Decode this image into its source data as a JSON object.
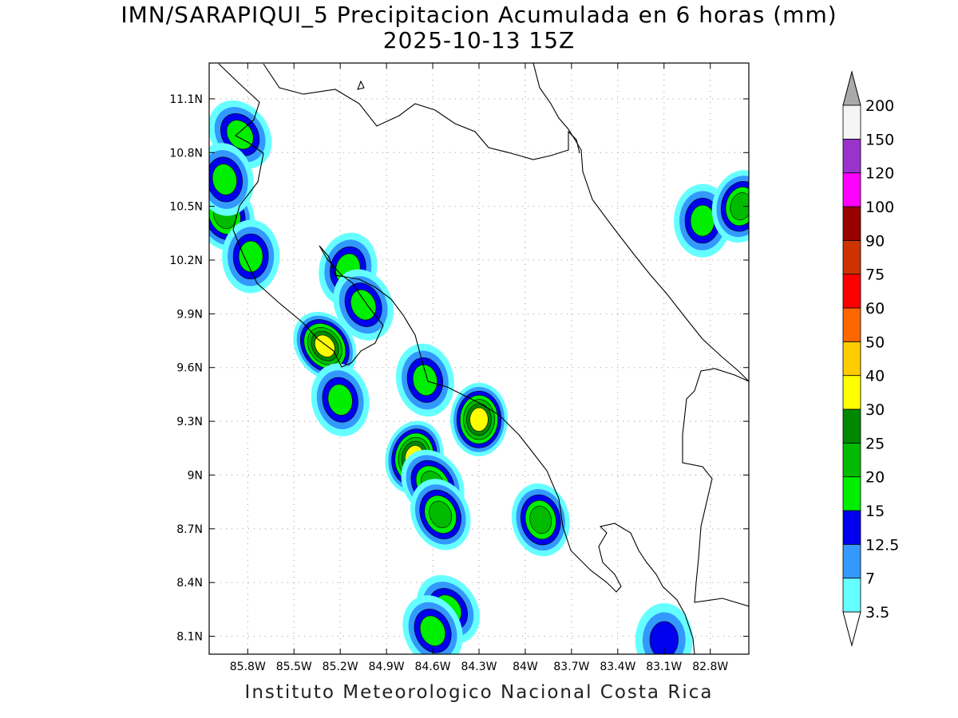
{
  "title": {
    "line1": "IMN/SARAPIQUI_5 Precipitacion Acumulada en 6 horas (mm)",
    "line2": "2025-10-13 15Z"
  },
  "credit": "Instituto Meteorologico Nacional Costa Rica",
  "map": {
    "lon_range": [
      -86.05,
      -82.55
    ],
    "lat_range": [
      8.0,
      11.3
    ],
    "lon_ticks": [
      {
        "value": -85.8,
        "label": "85.8W"
      },
      {
        "value": -85.5,
        "label": "85.5W"
      },
      {
        "value": -85.2,
        "label": "85.2W"
      },
      {
        "value": -84.9,
        "label": "84.9W"
      },
      {
        "value": -84.6,
        "label": "84.6W"
      },
      {
        "value": -84.3,
        "label": "84.3W"
      },
      {
        "value": -84.0,
        "label": "84W"
      },
      {
        "value": -83.7,
        "label": "83.7W"
      },
      {
        "value": -83.4,
        "label": "83.4W"
      },
      {
        "value": -83.1,
        "label": "83.1W"
      },
      {
        "value": -82.8,
        "label": "82.8W"
      }
    ],
    "lat_ticks": [
      {
        "value": 11.1,
        "label": "11.1N"
      },
      {
        "value": 10.8,
        "label": "10.8N"
      },
      {
        "value": 10.5,
        "label": "10.5N"
      },
      {
        "value": 10.2,
        "label": "10.2N"
      },
      {
        "value": 9.9,
        "label": "9.9N"
      },
      {
        "value": 9.6,
        "label": "9.6N"
      },
      {
        "value": 9.3,
        "label": "9.3N"
      },
      {
        "value": 9.0,
        "label": "9N"
      },
      {
        "value": 8.7,
        "label": "8.7N"
      },
      {
        "value": 8.4,
        "label": "8.4N"
      },
      {
        "value": 8.1,
        "label": "8.1N"
      }
    ],
    "grid": true
  },
  "colorbar": {
    "levels": [
      {
        "label": "3.5",
        "color": "#66ffff"
      },
      {
        "label": "7",
        "color": "#3399ff"
      },
      {
        "label": "12.5",
        "color": "#0000ee"
      },
      {
        "label": "15",
        "color": "#00ee00"
      },
      {
        "label": "20",
        "color": "#00bb00"
      },
      {
        "label": "25",
        "color": "#008800"
      },
      {
        "label": "30",
        "color": "#ffff00"
      },
      {
        "label": "40",
        "color": "#ffcc00"
      },
      {
        "label": "50",
        "color": "#ff6600"
      },
      {
        "label": "60",
        "color": "#ff0000"
      },
      {
        "label": "75",
        "color": "#cc3300"
      },
      {
        "label": "90",
        "color": "#990000"
      },
      {
        "label": "100",
        "color": "#ff00ff"
      },
      {
        "label": "120",
        "color": "#9933cc"
      },
      {
        "label": "150",
        "color": "#f5f5f5"
      },
      {
        "label": "200",
        "color": "#aaaaaa"
      }
    ]
  },
  "rain_cells": [
    {
      "lon": -85.85,
      "lat": 10.9,
      "peak": 15
    },
    {
      "lon": -85.95,
      "lat": 10.45,
      "peak": 20
    },
    {
      "lon": -85.95,
      "lat": 10.65,
      "peak": 15
    },
    {
      "lon": -85.78,
      "lat": 10.22,
      "peak": 15
    },
    {
      "lon": -85.15,
      "lat": 10.15,
      "peak": 15
    },
    {
      "lon": -85.3,
      "lat": 9.72,
      "peak": 30
    },
    {
      "lon": -85.05,
      "lat": 9.95,
      "peak": 15
    },
    {
      "lon": -84.65,
      "lat": 9.53,
      "peak": 15
    },
    {
      "lon": -84.3,
      "lat": 9.31,
      "peak": 30
    },
    {
      "lon": -84.72,
      "lat": 9.1,
      "peak": 30
    },
    {
      "lon": -84.6,
      "lat": 8.95,
      "peak": 20
    },
    {
      "lon": -84.55,
      "lat": 8.78,
      "peak": 20
    },
    {
      "lon": -83.9,
      "lat": 8.75,
      "peak": 20
    },
    {
      "lon": -82.85,
      "lat": 10.42,
      "peak": 15
    },
    {
      "lon": -82.6,
      "lat": 10.5,
      "peak": 20
    },
    {
      "lon": -84.5,
      "lat": 8.25,
      "peak": 15
    },
    {
      "lon": -84.6,
      "lat": 8.13,
      "peak": 15
    },
    {
      "lon": -85.2,
      "lat": 9.42,
      "peak": 15
    },
    {
      "lon": -83.1,
      "lat": 8.08,
      "peak": 12.5
    }
  ]
}
